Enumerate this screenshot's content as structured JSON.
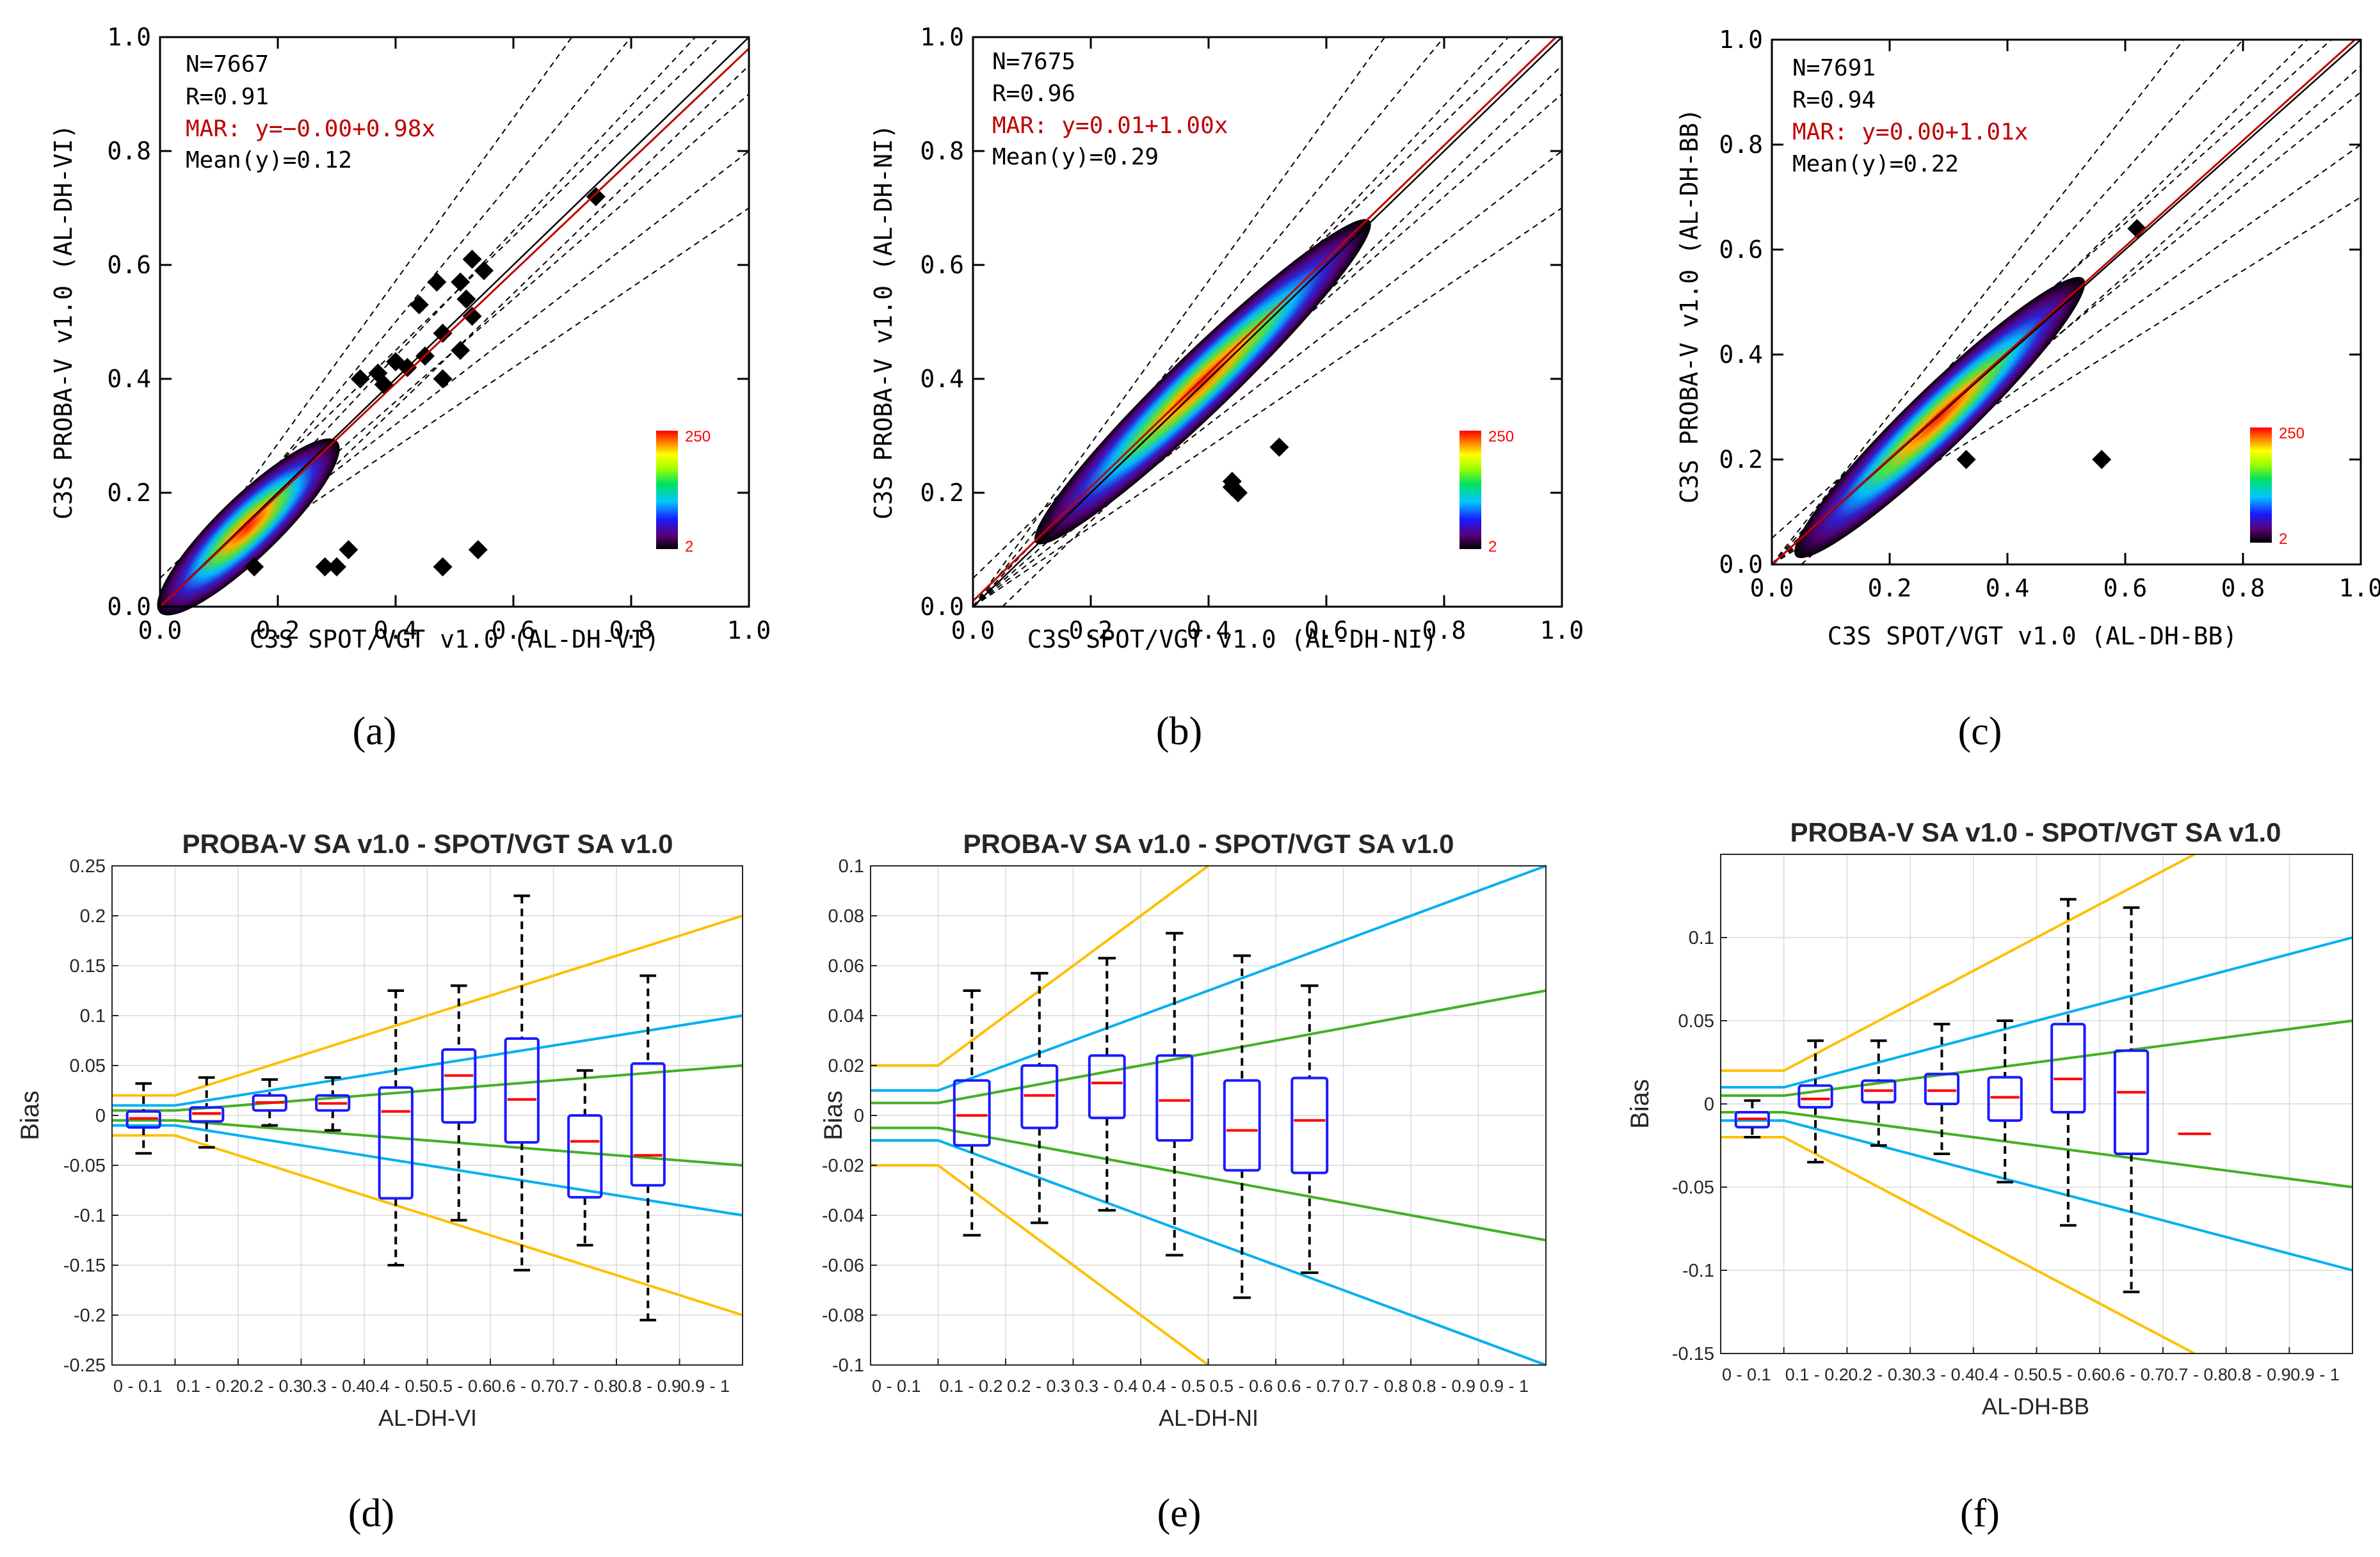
{
  "colors": {
    "fit": "#c00000",
    "one_to_one": "#000000",
    "box": "#1a1aff",
    "median": "#ff0000",
    "orange": "#ffbf00",
    "blue": "#00b0f0",
    "green": "#44b023",
    "whisker": "#000000",
    "grid": "#d9d9d9"
  },
  "chart_data": [
    {
      "id": "a",
      "type": "scatter",
      "panel_label": "(a)",
      "xlabel": "C3S SPOT/VGT v1.0 (AL-DH-VI)",
      "ylabel": "C3S PROBA-V v1.0 (AL-DH-VI)",
      "xlim": [
        0,
        1
      ],
      "ylim": [
        0,
        1
      ],
      "xticks": [
        "0.0",
        "0.2",
        "0.4",
        "0.6",
        "0.8",
        "1.0"
      ],
      "yticks": [
        "0.0",
        "0.2",
        "0.4",
        "0.6",
        "0.8",
        "1.0"
      ],
      "stats": {
        "n": "N=7667",
        "r": "R=0.91",
        "mar": "MAR: y=−0.00+0.98x",
        "mean": "Mean(y)=0.12"
      },
      "fit": {
        "intercept": 0.0,
        "slope": 0.98
      },
      "colorbar": {
        "min_label": "2",
        "max_label": "250"
      },
      "density_core": {
        "x": [
          0.02,
          0.28
        ],
        "y": [
          0.0,
          0.28
        ]
      },
      "outliers": [
        [
          0.74,
          0.72
        ],
        [
          0.53,
          0.61
        ],
        [
          0.55,
          0.59
        ],
        [
          0.51,
          0.57
        ],
        [
          0.47,
          0.57
        ],
        [
          0.52,
          0.54
        ],
        [
          0.44,
          0.53
        ],
        [
          0.53,
          0.51
        ],
        [
          0.48,
          0.48
        ],
        [
          0.45,
          0.44
        ],
        [
          0.4,
          0.43
        ],
        [
          0.42,
          0.42
        ],
        [
          0.51,
          0.45
        ],
        [
          0.37,
          0.41
        ],
        [
          0.38,
          0.39
        ],
        [
          0.48,
          0.4
        ],
        [
          0.34,
          0.4
        ],
        [
          0.16,
          0.07
        ],
        [
          0.28,
          0.07
        ],
        [
          0.3,
          0.07
        ],
        [
          0.32,
          0.1
        ],
        [
          0.48,
          0.07
        ],
        [
          0.54,
          0.1
        ]
      ]
    },
    {
      "id": "b",
      "type": "scatter",
      "panel_label": "(b)",
      "xlabel": "C3S SPOT/VGT v1.0 (AL-DH-NI)",
      "ylabel": "C3S PROBA-V v1.0 (AL-DH-NI)",
      "xlim": [
        0,
        1
      ],
      "ylim": [
        0,
        1
      ],
      "xticks": [
        "0.0",
        "0.2",
        "0.4",
        "0.6",
        "0.8",
        "1.0"
      ],
      "yticks": [
        "0.0",
        "0.2",
        "0.4",
        "0.6",
        "0.8",
        "1.0"
      ],
      "stats": {
        "n": "N=7675",
        "r": "R=0.96",
        "mar": "MAR: y=0.01+1.00x",
        "mean": "Mean(y)=0.29"
      },
      "fit": {
        "intercept": 0.01,
        "slope": 1.0
      },
      "colorbar": {
        "min_label": "2",
        "max_label": "250"
      },
      "density_core": {
        "x": [
          0.12,
          0.66
        ],
        "y": [
          0.13,
          0.66
        ]
      },
      "outliers": [
        [
          0.52,
          0.28
        ],
        [
          0.44,
          0.22
        ],
        [
          0.44,
          0.21
        ],
        [
          0.45,
          0.2
        ]
      ]
    },
    {
      "id": "c",
      "type": "scatter",
      "panel_label": "(c)",
      "xlabel": "C3S SPOT/VGT v1.0 (AL-DH-BB)",
      "ylabel": "C3S PROBA-V v1.0 (AL-DH-BB)",
      "xlim": [
        0,
        1
      ],
      "ylim": [
        0,
        1
      ],
      "xticks": [
        "0.0",
        "0.2",
        "0.4",
        "0.6",
        "0.8",
        "1.0"
      ],
      "yticks": [
        "0.0",
        "0.2",
        "0.4",
        "0.6",
        "0.8",
        "1.0"
      ],
      "stats": {
        "n": "N=7691",
        "r": "R=0.94",
        "mar": "MAR: y=0.00+1.01x",
        "mean": "Mean(y)=0.22"
      },
      "fit": {
        "intercept": 0.0,
        "slope": 1.01
      },
      "colorbar": {
        "min_label": "2",
        "max_label": "250"
      },
      "density_core": {
        "x": [
          0.05,
          0.52
        ],
        "y": [
          0.04,
          0.52
        ]
      },
      "outliers": [
        [
          0.62,
          0.64
        ],
        [
          0.33,
          0.2
        ],
        [
          0.56,
          0.2
        ]
      ]
    },
    {
      "id": "d",
      "type": "box",
      "panel_label": "(d)",
      "title": "PROBA-V SA v1.0 - SPOT/VGT SA v1.0",
      "xlabel": "AL-DH-VI",
      "ylabel": "Bias",
      "ylim": [
        -0.25,
        0.25
      ],
      "yticks": [
        "0.25",
        "0.2",
        "0.15",
        "0.1",
        "0.05",
        "0",
        "-0.05",
        "-0.1",
        "-0.15",
        "-0.2",
        "-0.25"
      ],
      "xticks": [
        "0 - 0.1",
        "0.1 - 0.2",
        "0.2 - 0.3",
        "0.3 - 0.4",
        "0.4 - 0.5",
        "0.5 - 0.6",
        "0.6 - 0.7",
        "0.7 - 0.8",
        "0.8 - 0.9",
        "0.9 - 1"
      ],
      "boxes": [
        {
          "x": 0.05,
          "min": -0.038,
          "q1": -0.012,
          "med": -0.003,
          "q3": 0.004,
          "max": 0.032
        },
        {
          "x": 0.15,
          "min": -0.032,
          "q1": -0.006,
          "med": 0.002,
          "q3": 0.008,
          "max": 0.038
        },
        {
          "x": 0.25,
          "min": -0.01,
          "q1": 0.005,
          "med": 0.013,
          "q3": 0.02,
          "max": 0.036
        },
        {
          "x": 0.35,
          "min": -0.015,
          "q1": 0.005,
          "med": 0.012,
          "q3": 0.02,
          "max": 0.038
        },
        {
          "x": 0.45,
          "min": -0.15,
          "q1": -0.083,
          "med": 0.004,
          "q3": 0.028,
          "max": 0.125
        },
        {
          "x": 0.55,
          "min": -0.105,
          "q1": -0.007,
          "med": 0.04,
          "q3": 0.066,
          "max": 0.13
        },
        {
          "x": 0.65,
          "min": -0.155,
          "q1": -0.027,
          "med": 0.016,
          "q3": 0.077,
          "max": 0.22
        },
        {
          "x": 0.75,
          "min": -0.13,
          "q1": -0.082,
          "med": -0.026,
          "q3": 0.0,
          "max": 0.045
        },
        {
          "x": 0.85,
          "min": -0.205,
          "q1": -0.07,
          "med": -0.04,
          "q3": 0.052,
          "max": 0.14
        }
      ],
      "requirements": {
        "orange": [
          0.02,
          0.2
        ],
        "blue": [
          0.01,
          0.1
        ],
        "green": [
          0.005,
          0.05
        ]
      }
    },
    {
      "id": "e",
      "type": "box",
      "panel_label": "(e)",
      "title": "PROBA-V SA v1.0 - SPOT/VGT SA v1.0",
      "xlabel": "AL-DH-NI",
      "ylabel": "Bias",
      "ylim": [
        -0.1,
        0.1
      ],
      "yticks": [
        "0.1",
        "0.08",
        "0.06",
        "0.04",
        "0.02",
        "0",
        "-0.02",
        "-0.04",
        "-0.06",
        "-0.08",
        "-0.1"
      ],
      "xticks": [
        "0 - 0.1",
        "0.1 - 0.2",
        "0.2 - 0.3",
        "0.3 - 0.4",
        "0.4 - 0.5",
        "0.5 - 0.6",
        "0.6 - 0.7",
        "0.7 - 0.8",
        "0.8 - 0.9",
        "0.9 - 1"
      ],
      "boxes": [
        {
          "x": 0.15,
          "min": -0.048,
          "q1": -0.012,
          "med": 0.0,
          "q3": 0.014,
          "max": 0.05
        },
        {
          "x": 0.25,
          "min": -0.043,
          "q1": -0.005,
          "med": 0.008,
          "q3": 0.02,
          "max": 0.057
        },
        {
          "x": 0.35,
          "min": -0.038,
          "q1": -0.001,
          "med": 0.013,
          "q3": 0.024,
          "max": 0.063
        },
        {
          "x": 0.45,
          "min": -0.056,
          "q1": -0.01,
          "med": 0.006,
          "q3": 0.024,
          "max": 0.073
        },
        {
          "x": 0.55,
          "min": -0.073,
          "q1": -0.022,
          "med": -0.006,
          "q3": 0.014,
          "max": 0.064
        },
        {
          "x": 0.65,
          "min": -0.063,
          "q1": -0.023,
          "med": -0.002,
          "q3": 0.015,
          "max": 0.052
        }
      ],
      "requirements": {
        "orange": [
          0.02,
          0.2
        ],
        "blue": [
          0.01,
          0.1
        ],
        "green": [
          0.005,
          0.05
        ]
      }
    },
    {
      "id": "f",
      "type": "box",
      "panel_label": "(f)",
      "title": "PROBA-V SA v1.0 - SPOT/VGT SA v1.0",
      "xlabel": "AL-DH-BB",
      "ylabel": "Bias",
      "ylim": [
        -0.15,
        0.15
      ],
      "yticks": [
        "0.1",
        "0.05",
        "0",
        "-0.05",
        "-0.1",
        "-0.15"
      ],
      "ytick_values": [
        0.1,
        0.05,
        0,
        -0.05,
        -0.1,
        -0.15
      ],
      "xticks": [
        "0 - 0.1",
        "0.1 - 0.2",
        "0.2 - 0.3",
        "0.3 - 0.4",
        "0.4 - 0.5",
        "0.5 - 0.6",
        "0.6 - 0.7",
        "0.7 - 0.8",
        "0.8 - 0.9",
        "0.9 - 1"
      ],
      "boxes": [
        {
          "x": 0.05,
          "min": -0.02,
          "q1": -0.014,
          "med": -0.009,
          "q3": -0.005,
          "max": 0.002
        },
        {
          "x": 0.15,
          "min": -0.035,
          "q1": -0.002,
          "med": 0.003,
          "q3": 0.011,
          "max": 0.038
        },
        {
          "x": 0.25,
          "min": -0.025,
          "q1": 0.001,
          "med": 0.008,
          "q3": 0.014,
          "max": 0.038
        },
        {
          "x": 0.35,
          "min": -0.03,
          "q1": 0.0,
          "med": 0.008,
          "q3": 0.018,
          "max": 0.048
        },
        {
          "x": 0.45,
          "min": -0.047,
          "q1": -0.01,
          "med": 0.004,
          "q3": 0.016,
          "max": 0.05
        },
        {
          "x": 0.55,
          "min": -0.073,
          "q1": -0.005,
          "med": 0.015,
          "q3": 0.048,
          "max": 0.123
        },
        {
          "x": 0.65,
          "min": -0.113,
          "q1": -0.03,
          "med": 0.007,
          "q3": 0.032,
          "max": 0.118
        },
        {
          "x": 0.75,
          "min": -0.018,
          "q1": -0.018,
          "med": -0.018,
          "q3": -0.018,
          "max": -0.018,
          "median_only": true
        }
      ],
      "requirements": {
        "orange": [
          0.02,
          0.2
        ],
        "blue": [
          0.01,
          0.1
        ],
        "green": [
          0.005,
          0.05
        ]
      }
    }
  ]
}
